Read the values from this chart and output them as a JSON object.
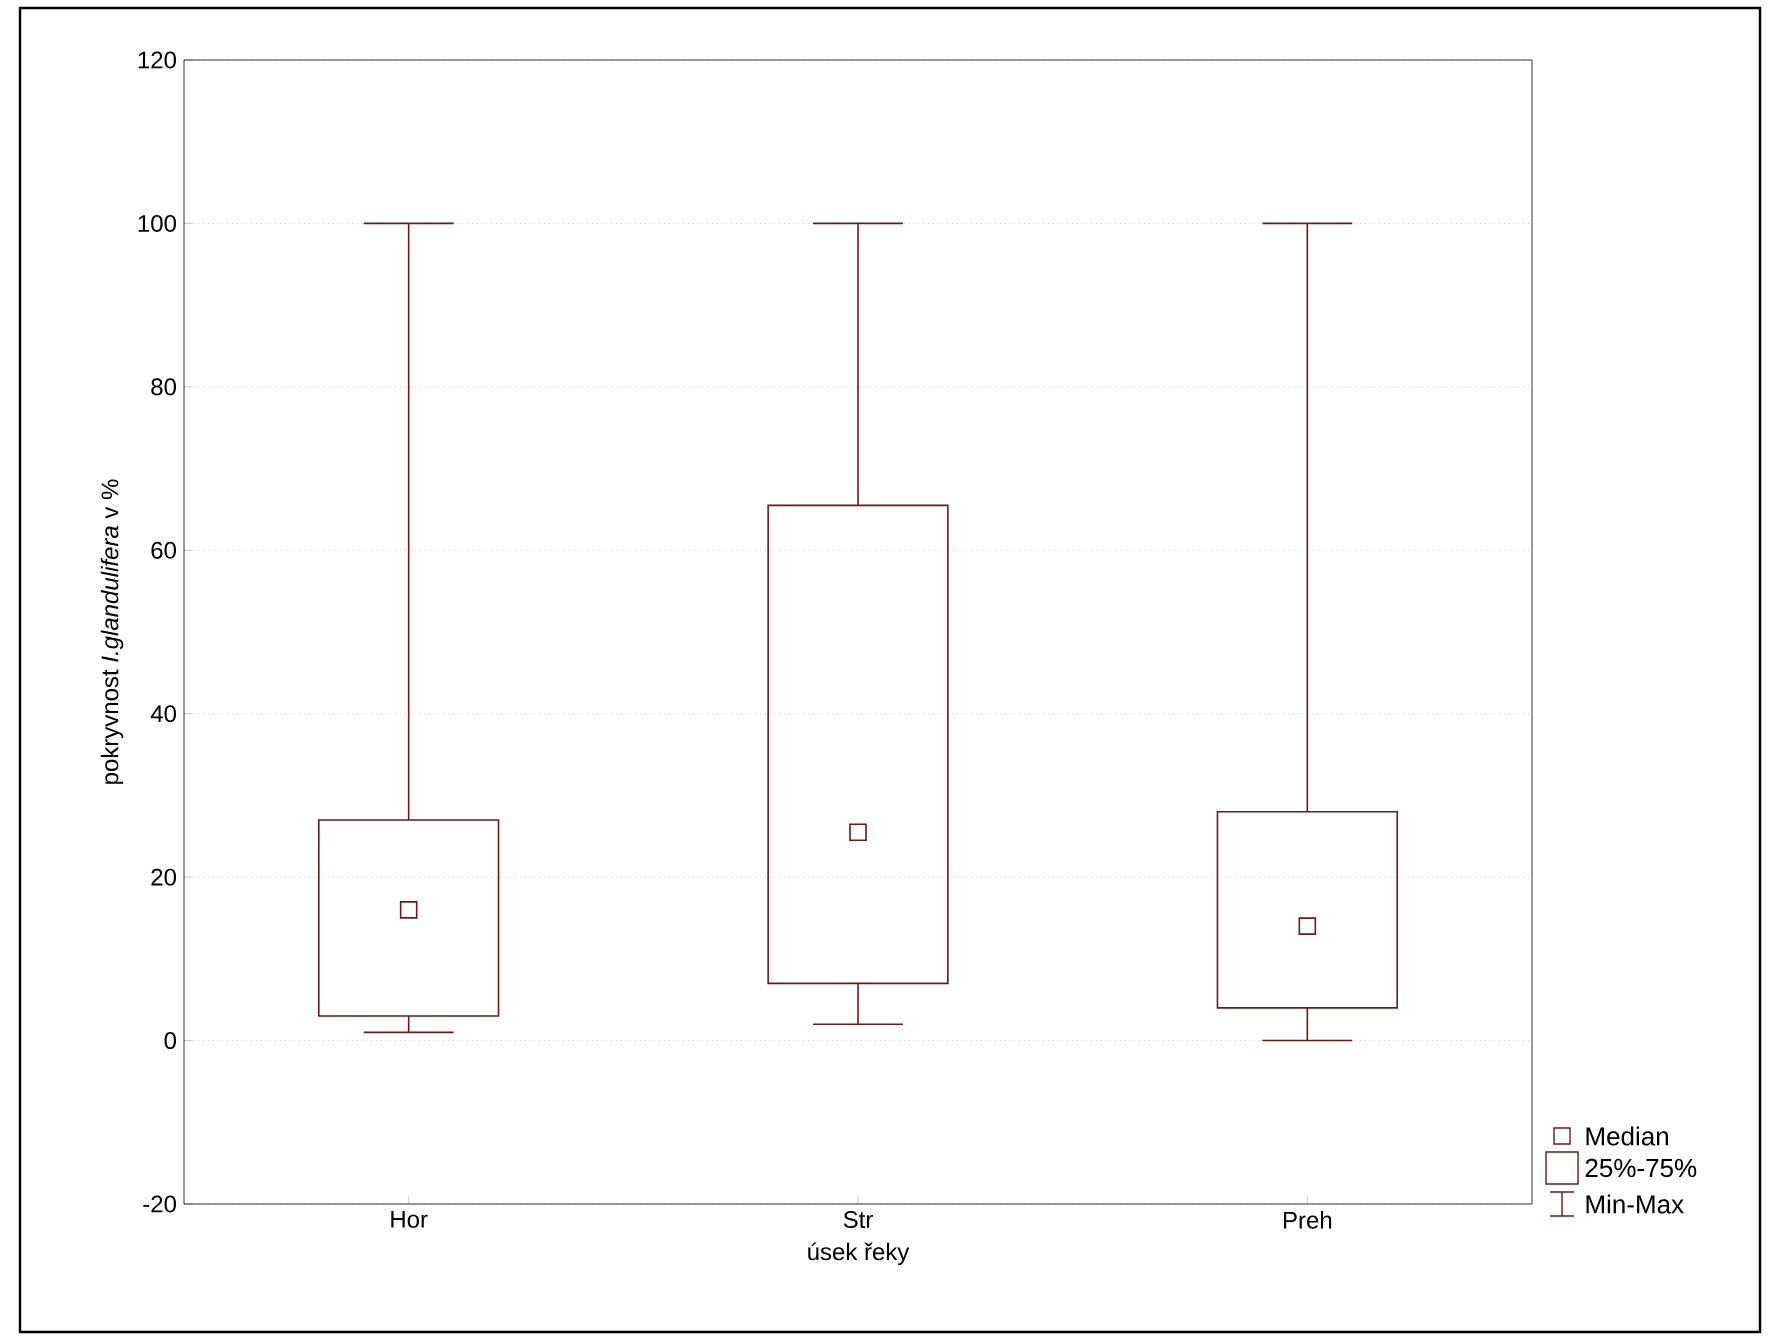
{
  "chart_data": {
    "type": "box",
    "xlabel": "úsek řeky",
    "ylabel": "pokryvnost *I.glandulifera* v  %",
    "categories": [
      "Hor",
      "Str",
      "Preh"
    ],
    "color": "#6b1a1a",
    "boxes": [
      {
        "low": 1,
        "q1": 3,
        "median": 16,
        "q3": 27,
        "high": 100
      },
      {
        "low": 2,
        "q1": 7,
        "median": 25.5,
        "q3": 65.5,
        "high": 100
      },
      {
        "low": 0,
        "q1": 4,
        "median": 14,
        "q3": 28,
        "high": 100
      }
    ],
    "ylim": [
      -20,
      120
    ],
    "yticks": [
      -20,
      0,
      20,
      40,
      60,
      80,
      100,
      120
    ],
    "grid": "y",
    "marker": "square",
    "annotations": [
      "Median",
      "25%-75%",
      "Min-Max"
    ]
  }
}
